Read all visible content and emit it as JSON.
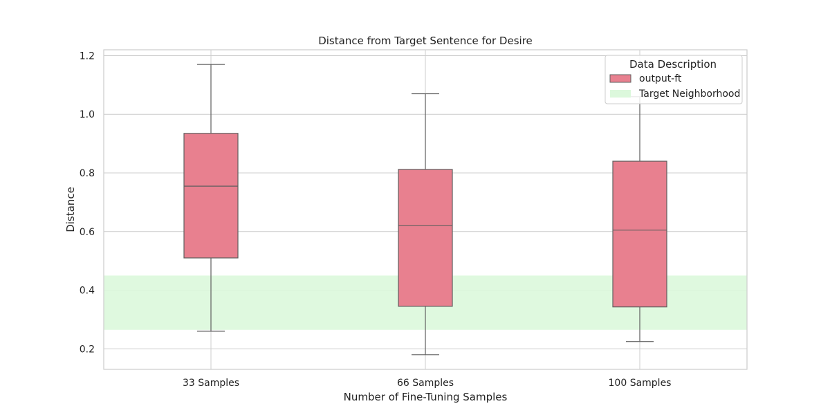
{
  "chart_data": {
    "type": "box",
    "title": "Distance from Target Sentence for Desire",
    "xlabel": "Number of Fine-Tuning Samples",
    "ylabel": "Distance",
    "categories": [
      "33 Samples",
      "66 Samples",
      "100 Samples"
    ],
    "yticks": [
      "0.2",
      "0.4",
      "0.6",
      "0.8",
      "1.0",
      "1.2"
    ],
    "ylim": [
      0.13,
      1.22
    ],
    "grid": true,
    "series": [
      {
        "name": "output-ft",
        "color": "#e8808f",
        "boxes": [
          {
            "whisker_low": 0.26,
            "q1": 0.51,
            "median": 0.755,
            "q3": 0.935,
            "whisker_high": 1.17
          },
          {
            "whisker_low": 0.18,
            "q1": 0.345,
            "median": 0.62,
            "q3": 0.812,
            "whisker_high": 1.07
          },
          {
            "whisker_low": 0.225,
            "q1": 0.343,
            "median": 0.605,
            "q3": 0.84,
            "whisker_high": 1.06
          }
        ]
      }
    ],
    "target_band": {
      "name": "Target Neighborhood",
      "low": 0.265,
      "high": 0.45,
      "color": "#dcf8dc"
    },
    "legend": {
      "title": "Data Description",
      "placement": "top-right",
      "entries": [
        "output-ft",
        "Target Neighborhood"
      ]
    }
  }
}
